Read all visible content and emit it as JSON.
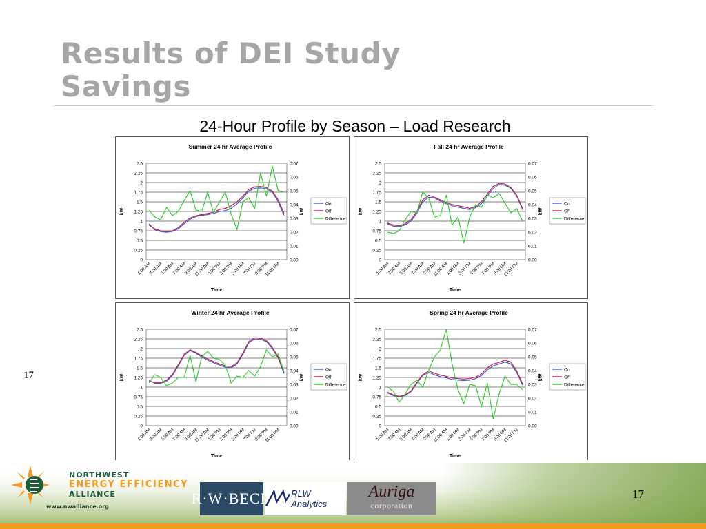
{
  "slide": {
    "title_line1": "Results of DEI Study",
    "title_line2": "Savings",
    "subtitle": "24-Hour Profile by Season – Load Research",
    "side_number": "17",
    "page_number": "17"
  },
  "footer": {
    "nw_line1": "NORTHWEST",
    "nw_line2": "ENERGY EFFICIENCY",
    "nw_line3": "ALLIANCE",
    "nw_url": "www.nwalliance.org",
    "rwbeck": "R·W·BECK",
    "rlw": "RLW Analytics",
    "auriga_main": "Auriga",
    "auriga_sub": "corporation"
  },
  "colors": {
    "on": "#3a5bd9",
    "off": "#c8203a",
    "difference": "#33cc33",
    "title_gray": "#a6a6a6",
    "accent_orange": "#f39a1e"
  },
  "chart_data": [
    {
      "type": "line",
      "title": "Summer 24 hr Average Profile",
      "xlabel": "Time",
      "ylabel": "kW",
      "y2label": "kW",
      "ylim": [
        0,
        2.5
      ],
      "y2lim": [
        0,
        0.07
      ],
      "yticks": [
        "0",
        "0.25",
        "0.5",
        "0.75",
        "1",
        "1.25",
        "1.5",
        "1.75",
        "2",
        "2.25",
        "2.5"
      ],
      "y2ticks": [
        "0.00",
        "0.01",
        "0.02",
        "0.03",
        "0.04",
        "0.05",
        "0.06",
        "0.07"
      ],
      "x_tick_labels": [
        "1:00 AM",
        "3:00 AM",
        "5:00 AM",
        "7:00 AM",
        "9:00 AM",
        "11:00 AM",
        "1:00 PM",
        "3:00 PM",
        "5:00 PM",
        "7:00 PM",
        "9:00 PM",
        "11:00 PM"
      ],
      "legend": [
        "On",
        "Off",
        "Difference"
      ],
      "series": [
        {
          "name": "On",
          "axis": "left",
          "values": [
            0.93,
            0.78,
            0.73,
            0.71,
            0.73,
            0.8,
            0.93,
            1.05,
            1.12,
            1.15,
            1.17,
            1.2,
            1.25,
            1.27,
            1.33,
            1.45,
            1.6,
            1.78,
            1.85,
            1.86,
            1.84,
            1.75,
            1.5,
            1.15
          ]
        },
        {
          "name": "Off",
          "axis": "left",
          "values": [
            0.9,
            0.8,
            0.75,
            0.73,
            0.75,
            0.83,
            0.97,
            1.08,
            1.14,
            1.17,
            1.2,
            1.23,
            1.3,
            1.33,
            1.4,
            1.5,
            1.65,
            1.82,
            1.89,
            1.9,
            1.87,
            1.78,
            1.55,
            1.2
          ]
        },
        {
          "name": "Difference",
          "axis": "right",
          "values": [
            0.036,
            0.031,
            0.029,
            0.038,
            0.032,
            0.035,
            0.043,
            0.05,
            0.036,
            0.035,
            0.049,
            0.034,
            0.042,
            0.049,
            0.033,
            0.022,
            0.042,
            0.045,
            0.037,
            0.063,
            0.046,
            0.068,
            0.05,
            0.049
          ]
        }
      ]
    },
    {
      "type": "line",
      "title": "Fall 24 hr Average Profile",
      "xlabel": "Time",
      "ylabel": "kW",
      "y2label": "kW",
      "ylim": [
        0,
        2.5
      ],
      "y2lim": [
        0,
        0.07
      ],
      "yticks": [
        "0",
        "0.25",
        "0.5",
        "0.75",
        "1",
        "1.25",
        "1.5",
        "1.75",
        "2",
        "2.25",
        "2.5"
      ],
      "y2ticks": [
        "0.00",
        "0.01",
        "0.02",
        "0.03",
        "0.04",
        "0.05",
        "0.06",
        "0.07"
      ],
      "x_tick_labels": [
        "1:00 AM",
        "3:00 AM",
        "5:00 AM",
        "7:00 AM",
        "9:00 AM",
        "11:00 AM",
        "1:00 PM",
        "3:00 PM",
        "5:00 PM",
        "7:00 PM",
        "9:00 PM",
        "11:00 PM"
      ],
      "legend": [
        "On",
        "Off",
        "Difference"
      ],
      "series": [
        {
          "name": "On",
          "axis": "left",
          "values": [
            0.93,
            0.87,
            0.86,
            0.9,
            1.0,
            1.2,
            1.5,
            1.62,
            1.6,
            1.52,
            1.45,
            1.4,
            1.36,
            1.33,
            1.3,
            1.35,
            1.45,
            1.65,
            1.85,
            1.95,
            1.93,
            1.85,
            1.65,
            1.3
          ]
        },
        {
          "name": "Off",
          "axis": "left",
          "values": [
            0.95,
            0.9,
            0.88,
            0.93,
            1.04,
            1.25,
            1.55,
            1.67,
            1.62,
            1.55,
            1.48,
            1.43,
            1.4,
            1.37,
            1.33,
            1.38,
            1.5,
            1.7,
            1.9,
            1.98,
            1.96,
            1.87,
            1.67,
            1.33
          ]
        },
        {
          "name": "Difference",
          "axis": "right",
          "values": [
            0.02,
            0.019,
            0.021,
            0.029,
            0.035,
            0.034,
            0.049,
            0.045,
            0.031,
            0.032,
            0.047,
            0.025,
            0.031,
            0.012,
            0.031,
            0.04,
            0.038,
            0.047,
            0.045,
            0.048,
            0.041,
            0.034,
            0.037,
            0.028
          ]
        }
      ]
    },
    {
      "type": "line",
      "title": "Winter 24 hr Average Profile",
      "xlabel": "Time",
      "ylabel": "kW",
      "y2label": "kW",
      "ylim": [
        0,
        2.5
      ],
      "y2lim": [
        0,
        0.07
      ],
      "yticks": [
        "0",
        "0.25",
        "0.5",
        "0.75",
        "1",
        "1.25",
        "1.5",
        "1.75",
        "2",
        "2.25",
        "2.5"
      ],
      "y2ticks": [
        "0.00",
        "0.01",
        "0.02",
        "0.03",
        "0.04",
        "0.05",
        "0.06",
        "0.07"
      ],
      "x_tick_labels": [
        "1:00 AM",
        "3:00 AM",
        "5:00 AM",
        "7:00 AM",
        "9:00 AM",
        "11:00 AM",
        "1:00 PM",
        "3:00 PM",
        "5:00 PM",
        "7:00 PM",
        "9:00 PM",
        "11:00 PM"
      ],
      "legend": [
        "On",
        "Off",
        "Difference"
      ],
      "series": [
        {
          "name": "On",
          "axis": "left",
          "values": [
            1.18,
            1.1,
            1.1,
            1.15,
            1.3,
            1.55,
            1.82,
            1.95,
            1.88,
            1.78,
            1.7,
            1.63,
            1.57,
            1.52,
            1.5,
            1.6,
            1.85,
            2.15,
            2.25,
            2.24,
            2.18,
            2.0,
            1.75,
            1.35
          ]
        },
        {
          "name": "Off",
          "axis": "left",
          "values": [
            1.15,
            1.12,
            1.12,
            1.18,
            1.33,
            1.58,
            1.85,
            1.97,
            1.9,
            1.81,
            1.73,
            1.66,
            1.6,
            1.55,
            1.53,
            1.63,
            1.88,
            2.18,
            2.28,
            2.27,
            2.21,
            2.03,
            1.78,
            1.38
          ]
        },
        {
          "name": "Difference",
          "axis": "right",
          "values": [
            0.031,
            0.037,
            0.035,
            0.029,
            0.031,
            0.035,
            0.035,
            0.051,
            0.032,
            0.05,
            0.054,
            0.049,
            0.048,
            0.044,
            0.031,
            0.036,
            0.035,
            0.04,
            0.036,
            0.043,
            0.055,
            0.05,
            0.052,
            0.039
          ]
        }
      ]
    },
    {
      "type": "line",
      "title": "Spring 24 hr Average Profile",
      "xlabel": "Time",
      "ylabel": "kW",
      "y2label": "kW",
      "ylim": [
        0,
        2.5
      ],
      "y2lim": [
        0,
        0.07
      ],
      "yticks": [
        "0",
        "0.25",
        "0.5",
        "0.75",
        "1",
        "1.25",
        "1.5",
        "1.75",
        "2",
        "2.25",
        "2.5"
      ],
      "y2ticks": [
        "0.00",
        "0.01",
        "0.02",
        "0.03",
        "0.04",
        "0.05",
        "0.06",
        "0.07"
      ],
      "x_tick_labels": [
        "1:00 AM",
        "3:00 AM",
        "5:00 AM",
        "7:00 AM",
        "9:00 AM",
        "11:00 AM",
        "1:00 PM",
        "3:00 PM",
        "5:00 PM",
        "7:00 PM",
        "9:00 PM",
        "11:00 PM"
      ],
      "legend": [
        "On",
        "Off",
        "Difference"
      ],
      "series": [
        {
          "name": "On",
          "axis": "left",
          "values": [
            0.85,
            0.78,
            0.75,
            0.78,
            0.88,
            1.1,
            1.3,
            1.38,
            1.32,
            1.27,
            1.24,
            1.2,
            1.18,
            1.17,
            1.18,
            1.22,
            1.3,
            1.45,
            1.55,
            1.6,
            1.65,
            1.6,
            1.38,
            1.05
          ]
        },
        {
          "name": "Off",
          "axis": "left",
          "values": [
            0.87,
            0.8,
            0.76,
            0.8,
            0.9,
            1.12,
            1.32,
            1.42,
            1.36,
            1.31,
            1.28,
            1.24,
            1.22,
            1.21,
            1.22,
            1.26,
            1.34,
            1.5,
            1.6,
            1.64,
            1.7,
            1.65,
            1.42,
            1.08
          ]
        },
        {
          "name": "Difference",
          "axis": "right",
          "values": [
            0.028,
            0.025,
            0.017,
            0.023,
            0.03,
            0.033,
            0.028,
            0.04,
            0.05,
            0.055,
            0.07,
            0.045,
            0.026,
            0.016,
            0.03,
            0.029,
            0.014,
            0.031,
            0.005,
            0.023,
            0.036,
            0.03,
            0.03,
            0.026
          ]
        }
      ]
    }
  ]
}
